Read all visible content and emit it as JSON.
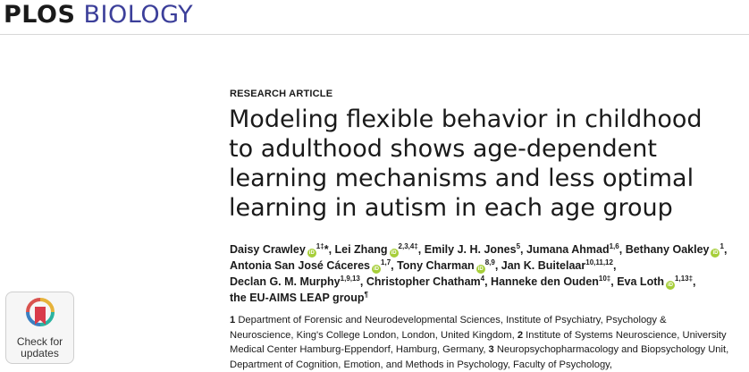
{
  "journal": {
    "part1": "PLOS",
    "part2": "BIOLOGY"
  },
  "article": {
    "type": "RESEARCH ARTICLE",
    "title": "Modeling flexible behavior in childhood to adulthood shows age-dependent learning mechanisms and less optimal learning in autism in each age group"
  },
  "authors": [
    {
      "name": "Daisy Crawley",
      "orcid": true,
      "sup": "1‡",
      "extra": "*"
    },
    {
      "name": "Lei Zhang",
      "orcid": true,
      "sup": "2,3,4‡"
    },
    {
      "name": "Emily J. H. Jones",
      "orcid": false,
      "sup": "5"
    },
    {
      "name": "Jumana Ahmad",
      "orcid": false,
      "sup": "1,6"
    },
    {
      "name": "Bethany Oakley",
      "orcid": true,
      "sup": "1"
    },
    {
      "name": "Antonia San José Cáceres",
      "orcid": true,
      "sup": "1,7"
    },
    {
      "name": "Tony Charman",
      "orcid": true,
      "sup": "8,9"
    },
    {
      "name": "Jan K. Buitelaar",
      "orcid": false,
      "sup": "10,11,12"
    },
    {
      "name": "Declan G. M. Murphy",
      "orcid": false,
      "sup": "1,9,13"
    },
    {
      "name": "Christopher Chatham",
      "orcid": false,
      "sup": "4"
    },
    {
      "name": "Hanneke den Ouden",
      "orcid": false,
      "sup": "10‡"
    },
    {
      "name": "Eva Loth",
      "orcid": true,
      "sup": "1,13‡"
    },
    {
      "name": "the EU-AIMS LEAP group",
      "orcid": false,
      "sup": "¶"
    }
  ],
  "affiliations": [
    {
      "num": "1",
      "text": "Department of Forensic and Neurodevelopmental Sciences, Institute of Psychiatry, Psychology & Neuroscience, King's College London, London, United Kingdom,"
    },
    {
      "num": "2",
      "text": "Institute of Systems Neuroscience, University Medical Center Hamburg-Eppendorf, Hamburg, Germany,"
    },
    {
      "num": "3",
      "text": "Neuropsychopharmacology and Biopsychology Unit, Department of Cognition, Emotion, and Methods in Psychology, Faculty of Psychology,"
    }
  ],
  "check_updates": {
    "line1": "Check for",
    "line2": "updates"
  },
  "orcid_label": "iD",
  "colors": {
    "brand_blue": "#3c3f9a",
    "orcid_green": "#a6ce39"
  }
}
